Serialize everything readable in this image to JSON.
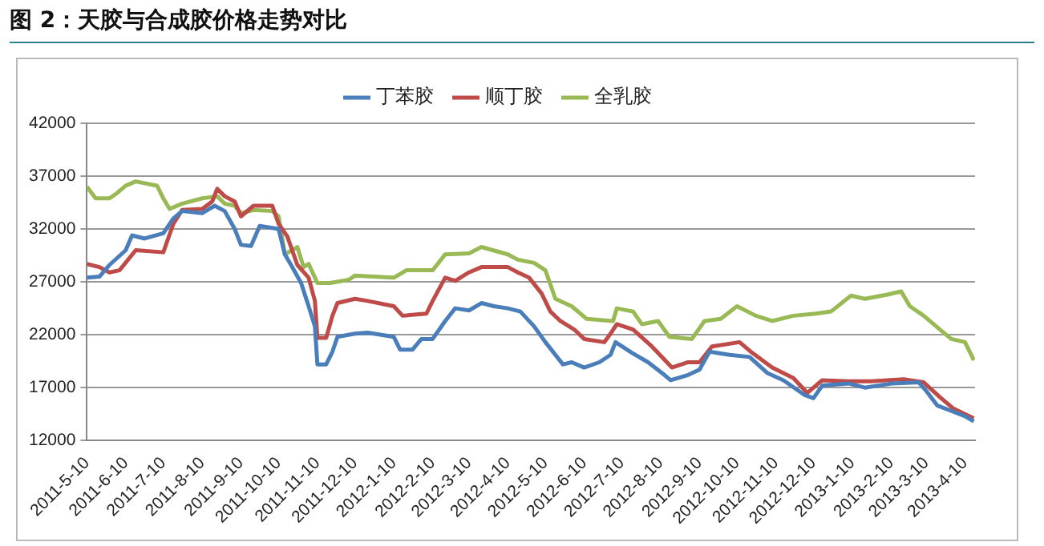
{
  "chart_data": {
    "type": "line",
    "title": "图 2：天胶与合成胶价格走势对比",
    "xlim": [
      "2011-05-10",
      "2013-04-18"
    ],
    "xticks": [
      {
        "value": "2011-05-10",
        "label": "2011-5-10"
      },
      {
        "value": "2011-06-10",
        "label": "2011-6-10"
      },
      {
        "value": "2011-07-10",
        "label": "2011-7-10"
      },
      {
        "value": "2011-08-10",
        "label": "2011-8-10"
      },
      {
        "value": "2011-09-10",
        "label": "2011-9-10"
      },
      {
        "value": "2011-10-10",
        "label": "2011-10-10"
      },
      {
        "value": "2011-11-10",
        "label": "2011-11-10"
      },
      {
        "value": "2011-12-10",
        "label": "2011-12-10"
      },
      {
        "value": "2012-01-10",
        "label": "2012-1-10"
      },
      {
        "value": "2012-02-10",
        "label": "2012-2-10"
      },
      {
        "value": "2012-03-10",
        "label": "2012-3-10"
      },
      {
        "value": "2012-04-10",
        "label": "2012-4-10"
      },
      {
        "value": "2012-05-10",
        "label": "2012-5-10"
      },
      {
        "value": "2012-06-10",
        "label": "2012-6-10"
      },
      {
        "value": "2012-07-10",
        "label": "2012-7-10"
      },
      {
        "value": "2012-08-10",
        "label": "2012-8-10"
      },
      {
        "value": "2012-09-10",
        "label": "2012-9-10"
      },
      {
        "value": "2012-10-10",
        "label": "2012-10-10"
      },
      {
        "value": "2012-11-10",
        "label": "2012-11-10"
      },
      {
        "value": "2012-12-10",
        "label": "2012-12-10"
      },
      {
        "value": "2013-01-10",
        "label": "2013-1-10"
      },
      {
        "value": "2013-02-10",
        "label": "2013-2-10"
      },
      {
        "value": "2013-03-10",
        "label": "2013-3-10"
      },
      {
        "value": "2013-04-10",
        "label": "2013-4-10"
      }
    ],
    "ylim": [
      12000,
      42000
    ],
    "yticks": [
      12000,
      17000,
      22000,
      27000,
      32000,
      37000,
      42000
    ],
    "grid": "y",
    "legend": "top",
    "marker": "none",
    "line_style": "solid",
    "series": [
      {
        "name": "丁苯胶",
        "color": "#4a7ebb",
        "x": [
          "2011-05-10",
          "2011-05-20",
          "2011-05-28",
          "2011-06-10",
          "2011-06-15",
          "2011-06-25",
          "2011-07-10",
          "2011-07-18",
          "2011-07-25",
          "2011-08-10",
          "2011-08-20",
          "2011-08-28",
          "2011-09-05",
          "2011-09-10",
          "2011-09-18",
          "2011-09-25",
          "2011-10-10",
          "2011-10-15",
          "2011-10-20",
          "2011-10-28",
          "2011-11-03",
          "2011-11-08",
          "2011-11-10",
          "2011-11-17",
          "2011-11-22",
          "2011-11-26",
          "2011-12-10",
          "2011-12-20",
          "2012-01-10",
          "2012-01-15",
          "2012-01-25",
          "2012-02-01",
          "2012-02-10",
          "2012-02-20",
          "2012-02-28",
          "2012-03-10",
          "2012-03-20",
          "2012-03-30",
          "2012-04-10",
          "2012-04-20",
          "2012-05-01",
          "2012-05-10",
          "2012-05-24",
          "2012-05-31",
          "2012-06-10",
          "2012-06-22",
          "2012-07-01",
          "2012-07-05",
          "2012-07-18",
          "2012-07-31",
          "2012-08-13",
          "2012-08-18",
          "2012-09-01",
          "2012-09-10",
          "2012-09-18",
          "2012-10-04",
          "2012-10-20",
          "2012-11-03",
          "2012-11-16",
          "2012-12-03",
          "2012-12-10",
          "2012-12-17",
          "2013-01-07",
          "2013-01-20",
          "2013-02-11",
          "2013-03-04",
          "2013-03-10",
          "2013-03-19",
          "2013-03-30",
          "2013-04-10",
          "2013-04-17"
        ],
        "values": [
          27400,
          27500,
          28600,
          30000,
          31400,
          31100,
          31600,
          33000,
          33700,
          33500,
          34200,
          33700,
          32000,
          30500,
          30400,
          32300,
          32000,
          29600,
          28600,
          26900,
          24700,
          22800,
          19200,
          19200,
          20400,
          21800,
          22100,
          22200,
          21800,
          20600,
          20600,
          21600,
          21600,
          23300,
          24500,
          24300,
          25000,
          24700,
          24500,
          24200,
          22800,
          21300,
          19200,
          19400,
          18900,
          19400,
          20100,
          21300,
          20300,
          19400,
          18200,
          17700,
          18200,
          18700,
          20400,
          20100,
          19900,
          18400,
          17700,
          16300,
          16000,
          17200,
          17400,
          17000,
          17400,
          17500,
          16700,
          15300,
          14800,
          14300,
          13800
        ]
      },
      {
        "name": "顺丁胶",
        "color": "#be4b48",
        "x": [
          "2011-05-10",
          "2011-05-20",
          "2011-05-28",
          "2011-06-05",
          "2011-06-18",
          "2011-07-10",
          "2011-07-18",
          "2011-07-25",
          "2011-08-10",
          "2011-08-18",
          "2011-08-22",
          "2011-08-28",
          "2011-09-05",
          "2011-09-10",
          "2011-09-20",
          "2011-10-05",
          "2011-10-10",
          "2011-10-17",
          "2011-10-25",
          "2011-11-03",
          "2011-11-08",
          "2011-11-10",
          "2011-11-17",
          "2011-11-22",
          "2011-11-26",
          "2011-12-10",
          "2011-12-20",
          "2012-01-10",
          "2012-01-17",
          "2012-02-05",
          "2012-02-10",
          "2012-02-20",
          "2012-02-28",
          "2012-03-10",
          "2012-03-20",
          "2012-04-10",
          "2012-04-18",
          "2012-04-27",
          "2012-05-07",
          "2012-05-14",
          "2012-05-22",
          "2012-06-02",
          "2012-06-10",
          "2012-06-26",
          "2012-07-01",
          "2012-07-06",
          "2012-07-19",
          "2012-08-03",
          "2012-08-19",
          "2012-09-01",
          "2012-09-10",
          "2012-09-20",
          "2012-10-12",
          "2012-10-22",
          "2012-11-07",
          "2012-11-24",
          "2012-12-05",
          "2012-12-17",
          "2013-01-07",
          "2013-01-25",
          "2013-02-20",
          "2013-03-08",
          "2013-03-21",
          "2013-04-01",
          "2013-04-17"
        ],
        "values": [
          28700,
          28400,
          27900,
          28100,
          30000,
          29800,
          32500,
          33800,
          33900,
          34600,
          35800,
          35100,
          34600,
          33200,
          34200,
          34200,
          32500,
          31300,
          28600,
          27400,
          25200,
          21700,
          21700,
          23800,
          25000,
          25400,
          25200,
          24700,
          23800,
          24000,
          25200,
          27400,
          27100,
          27900,
          28400,
          28400,
          27900,
          27400,
          25900,
          24200,
          23300,
          22500,
          21600,
          21300,
          22100,
          23000,
          22500,
          20900,
          18900,
          19400,
          19400,
          20900,
          21300,
          20300,
          18900,
          17900,
          16500,
          17700,
          17600,
          17600,
          17800,
          17500,
          16100,
          15000,
          14100
        ]
      },
      {
        "name": "全乳胶",
        "color": "#98b954",
        "x": [
          "2011-05-10",
          "2011-05-17",
          "2011-05-28",
          "2011-06-03",
          "2011-06-10",
          "2011-06-18",
          "2011-07-05",
          "2011-07-10",
          "2011-07-15",
          "2011-07-25",
          "2011-08-10",
          "2011-08-22",
          "2011-08-28",
          "2011-09-05",
          "2011-09-10",
          "2011-09-20",
          "2011-10-05",
          "2011-10-10",
          "2011-10-15",
          "2011-10-25",
          "2011-10-30",
          "2011-11-03",
          "2011-11-10",
          "2011-11-20",
          "2011-12-05",
          "2011-12-10",
          "2012-01-10",
          "2012-01-20",
          "2012-02-10",
          "2012-02-20",
          "2012-03-10",
          "2012-03-20",
          "2012-04-10",
          "2012-04-18",
          "2012-05-01",
          "2012-05-10",
          "2012-05-18",
          "2012-05-31",
          "2012-06-12",
          "2012-07-03",
          "2012-07-06",
          "2012-07-19",
          "2012-07-26",
          "2012-08-08",
          "2012-08-17",
          "2012-09-04",
          "2012-09-14",
          "2012-09-27",
          "2012-10-10",
          "2012-10-25",
          "2012-11-07",
          "2012-11-24",
          "2012-12-12",
          "2012-12-24",
          "2013-01-09",
          "2013-01-20",
          "2013-02-07",
          "2013-02-18",
          "2013-02-25",
          "2013-03-08",
          "2013-03-21",
          "2013-03-30",
          "2013-04-10",
          "2013-04-17"
        ],
        "values": [
          36000,
          34900,
          34900,
          35400,
          36100,
          36500,
          36100,
          34900,
          33900,
          34400,
          34900,
          35100,
          34400,
          34200,
          33500,
          33800,
          33700,
          33200,
          29600,
          30300,
          28400,
          28700,
          26900,
          26900,
          27200,
          27600,
          27400,
          28100,
          28100,
          29600,
          29700,
          30300,
          29600,
          29100,
          28800,
          28100,
          25400,
          24700,
          23500,
          23300,
          24500,
          24200,
          23000,
          23300,
          21800,
          21600,
          23300,
          23500,
          24700,
          23800,
          23300,
          23800,
          24000,
          24200,
          25700,
          25400,
          25800,
          26100,
          24700,
          23800,
          22500,
          21600,
          21300,
          19600
        ]
      }
    ]
  }
}
